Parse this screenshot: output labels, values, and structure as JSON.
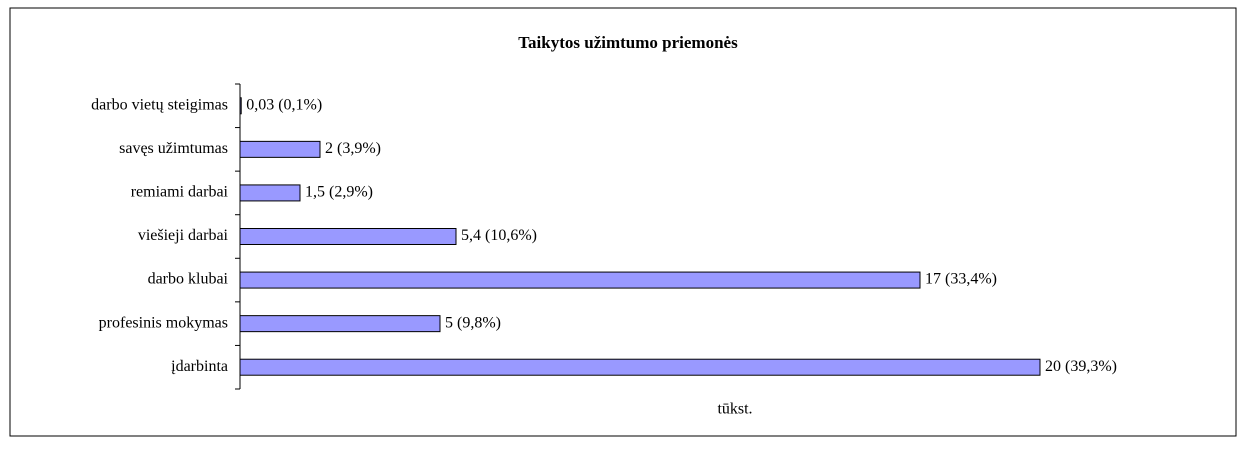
{
  "chart_data": {
    "type": "bar",
    "orientation": "horizontal",
    "title": "Taikytos užimtumo priemonės",
    "x_label": "tūkst.",
    "categories": [
      "darbo vietų steigimas",
      "savęs užimtumas",
      "remiami darbai",
      "viešieji darbai",
      "darbo klubai",
      "profesinis mokymas",
      "įdarbinta"
    ],
    "values": [
      0.03,
      2,
      1.5,
      5.4,
      17,
      5,
      20
    ],
    "value_labels": [
      "0,03 (0,1%)",
      "2 (3,9%)",
      "1,5 (2,9%)",
      "5,4 (10,6%)",
      "17 (33,4%)",
      "5 (9,8%)",
      "20 (39,3%)"
    ],
    "color": "#9999ff",
    "xlim": [
      0,
      22
    ]
  }
}
